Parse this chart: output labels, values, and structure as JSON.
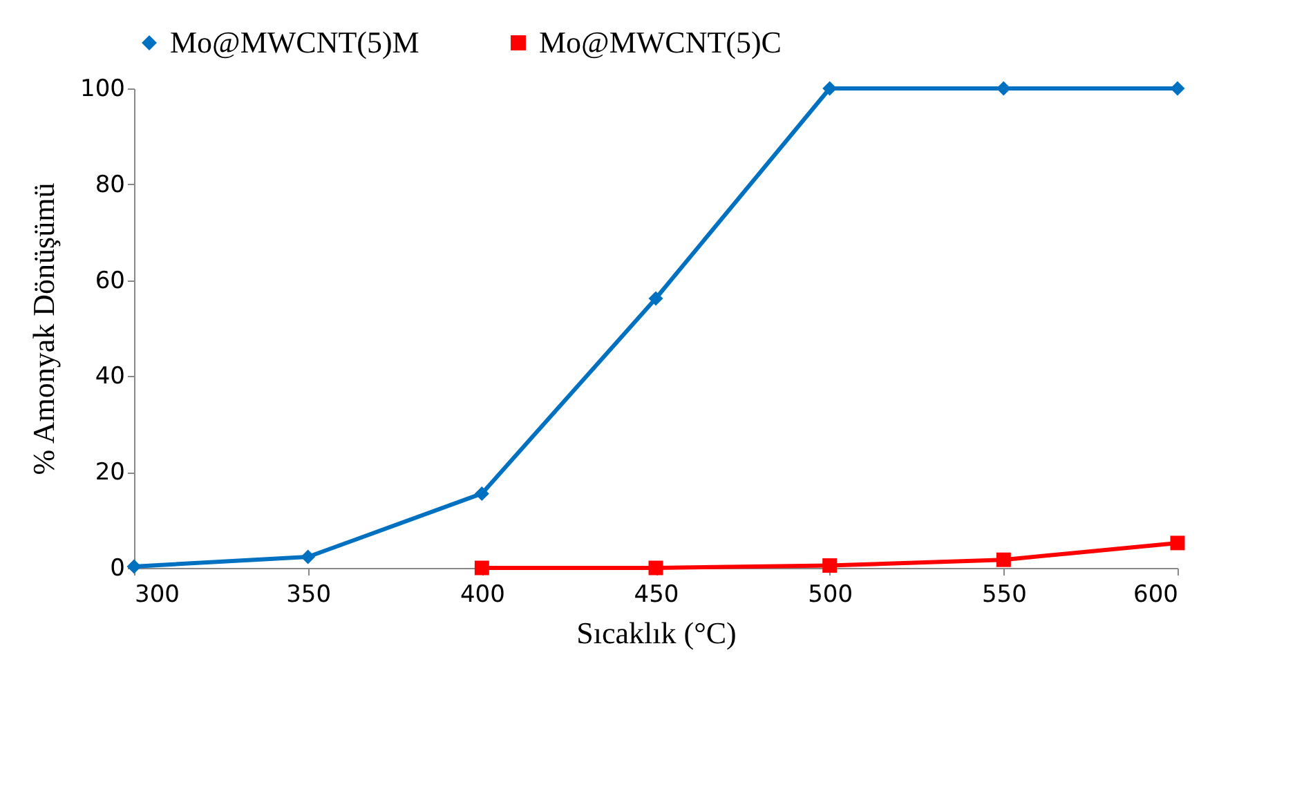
{
  "chart_data": {
    "type": "line",
    "xlabel": "Sıcaklık (°C)",
    "ylabel": "% Amonyak  Dönüşümü",
    "x": [
      300,
      350,
      400,
      450,
      500,
      550,
      600
    ],
    "series": [
      {
        "name": "Mo@MWCNT(5)M",
        "color": "#0070c0",
        "marker": "diamond",
        "values": [
          0.3,
          2.3,
          15.5,
          56.2,
          100,
          100,
          100
        ]
      },
      {
        "name": "Mo@MWCNT(5)C",
        "color": "#ff0000",
        "marker": "square",
        "values": [
          null,
          null,
          0,
          0,
          0.5,
          1.7,
          5.2
        ]
      }
    ],
    "xlim": [
      300,
      600
    ],
    "xticks": [
      300,
      350,
      400,
      450,
      500,
      550,
      600
    ],
    "ylim": [
      0,
      100
    ],
    "yticks": [
      0,
      20,
      40,
      60,
      80,
      100
    ],
    "grid": false,
    "legend": "top",
    "line_style": "solid"
  }
}
